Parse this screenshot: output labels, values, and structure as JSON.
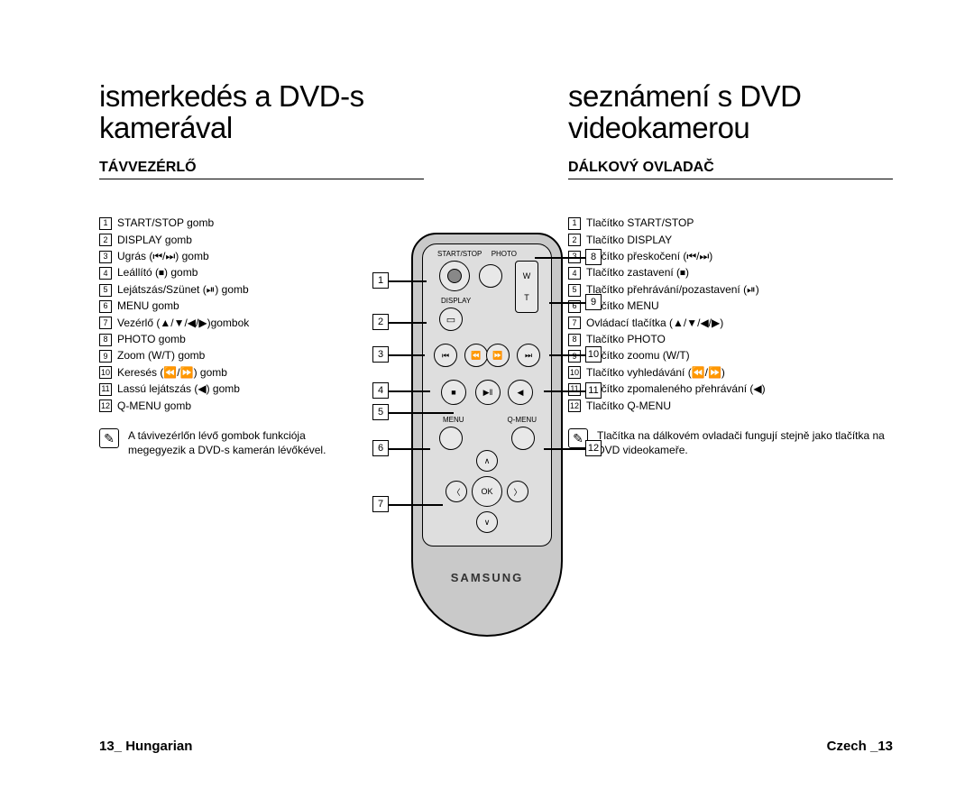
{
  "left": {
    "title_l1": "ismerkedés a DVD-s",
    "title_l2": "kamerával",
    "section": "TÁVVEZÉRLŐ",
    "items": [
      "START/STOP gomb",
      "DISPLAY gomb",
      "Ugrás (⏮/⏭) gomb",
      "Leállító (⏹) gomb",
      "Lejátszás/Szünet (⏯) gomb",
      "MENU gomb",
      "Vezérlő (▲/▼/◀/▶)gombok",
      "PHOTO gomb",
      "Zoom (W/T) gomb",
      "Keresés (⏪/⏩) gomb",
      "Lassú lejátszás (◀) gomb",
      "Q-MENU gomb"
    ],
    "note": "A távivezérlőn lévő gombok funkciója megegyezik a DVD-s kamerán lévőkével."
  },
  "right": {
    "title_l1": "seznámení s DVD",
    "title_l2": "videokamerou",
    "section": "DÁLKOVÝ OVLADAČ",
    "items": [
      "Tlačítko START/STOP",
      "Tlačítko DISPLAY",
      "Tlačítko přeskočení (⏮/⏭)",
      "Tlačítko zastavení (⏹)",
      "Tlačítko přehrávání/pozastavení (⏯)",
      "Tlačítko MENU",
      "Ovládací tlačítka (▲/▼/◀/▶)",
      "Tlačítko PHOTO",
      "Tlačítko zoomu (W/T)",
      "Tlačítko vyhledávání (⏪/⏩)",
      "Tlačítko zpomaleného přehrávání (◀)",
      "Tlačítko Q-MENU"
    ],
    "note": "Tlačítka na dálkovém ovladači fungují stejně jako tlačítka na DVD videokameře."
  },
  "remote": {
    "labels": {
      "start_stop": "START/STOP",
      "photo": "PHOTO",
      "display": "DISPLAY",
      "menu": "MENU",
      "qmenu": "Q-MENU",
      "ok": "OK",
      "w": "W",
      "t": "T"
    },
    "brand": "SAMSUNG"
  },
  "footer": {
    "left": "13_ Hungarian",
    "right": "Czech _13"
  }
}
